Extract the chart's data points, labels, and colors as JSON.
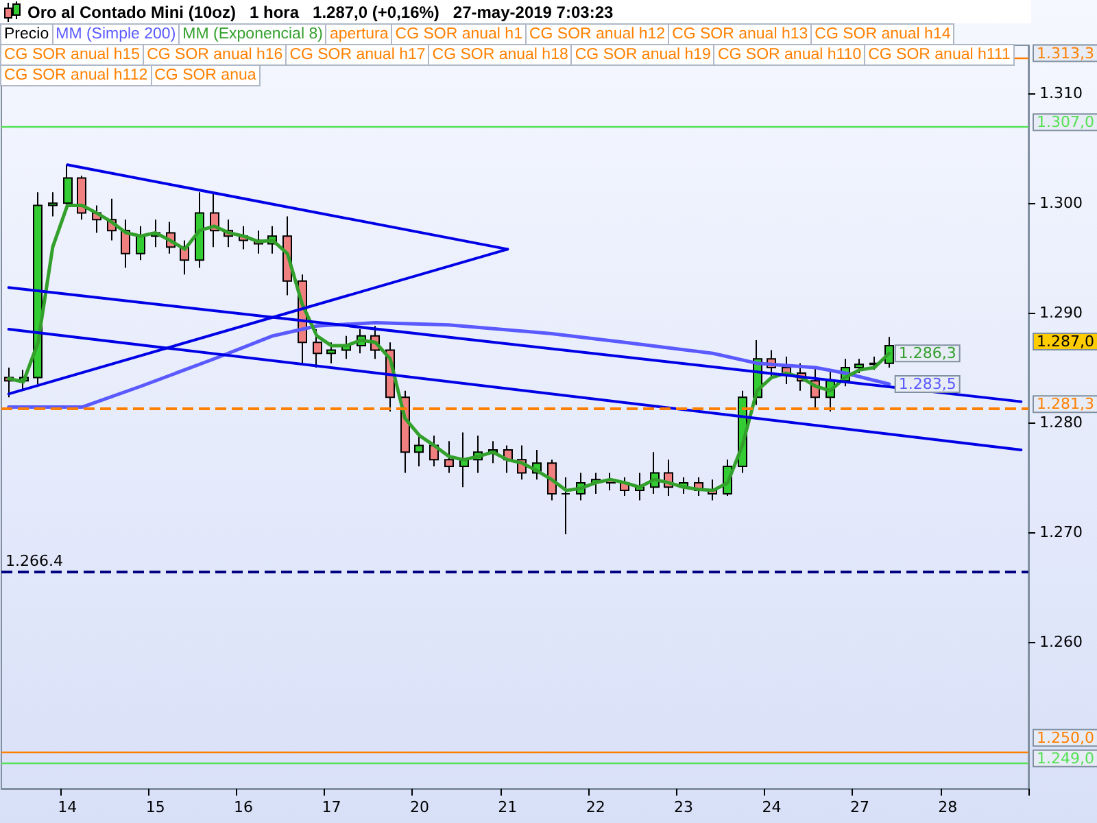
{
  "chart_data": {
    "type": "candlestick",
    "title": "Oro al Contado Mini (10oz)   1 hora   1.287,0 (+0,16%)   27-may-2019 7:03:23",
    "legend": "top",
    "annotations": [
      "apertura",
      "CG SOR anual h1",
      "CG SOR anual h12",
      "CG SOR anual h13",
      "CG SOR anual h14",
      "CG SOR anual h15",
      "CG SOR anual h16",
      "CG SOR anual h17",
      "CG SOR anual h18",
      "CG SOR anual h19",
      "CG SOR anual h110",
      "CG SOR anual h111",
      "CG SOR anual h112",
      "CG SOR anua",
      {
        "text": "1.266.4",
        "y": 1266.4
      }
    ],
    "categories": [
      null,
      null,
      null,
      null,
      "14",
      null,
      null,
      null,
      null,
      null,
      "15",
      null,
      null,
      null,
      null,
      null,
      "16",
      null,
      null,
      null,
      null,
      null,
      "17",
      null,
      null,
      null,
      null,
      null,
      "20",
      null,
      null,
      null,
      null,
      null,
      "21",
      null,
      null,
      null,
      null,
      null,
      "22",
      null,
      null,
      null,
      null,
      null,
      "23",
      null,
      null,
      null,
      null,
      null,
      "24",
      null,
      null,
      null,
      null,
      null,
      "27",
      null,
      null,
      null,
      null,
      null,
      "28",
      null,
      null,
      null,
      null,
      null
    ],
    "ylim": [
      1246.6,
      1314.4
    ],
    "yticks": [
      {
        "value": 1260,
        "label": "1.260"
      },
      {
        "value": 1270,
        "label": "1.270"
      },
      {
        "value": 1280,
        "label": "1.280"
      },
      {
        "value": 1290,
        "label": "1.290"
      },
      {
        "value": 1300,
        "label": "1.300"
      },
      {
        "value": 1310,
        "label": "1.310"
      }
    ],
    "ref_lines": [
      {
        "axis": "y",
        "value": 1313.3,
        "label": "1.313,3",
        "color": "#ff8000"
      },
      {
        "axis": "y",
        "value": 1307,
        "label": "1.307,0",
        "color": "#55e055"
      },
      {
        "axis": "y",
        "value": 1281.3,
        "label": "1.281,3",
        "color": "#ff8000",
        "line_style": "dashed"
      },
      {
        "axis": "y",
        "value": 1266.4,
        "color": "#000080",
        "line_style": "dashed"
      },
      {
        "axis": "y",
        "value": 1250,
        "label": "1.250,0",
        "color": "#ff8000"
      },
      {
        "axis": "y",
        "value": 1249,
        "label": "1.249,0",
        "color": "#55e055"
      }
    ],
    "series": [
      {
        "type": "candlestick",
        "name": "Precio",
        "ohlc": [
          [
            1284.1,
            1285,
            1282.3,
            1283.8
          ],
          [
            1283.8,
            1284.8,
            1282.9,
            1284.1
          ],
          [
            1284.1,
            1301,
            1283.5,
            1299.8
          ],
          [
            1299.8,
            1301,
            1298.8,
            1300
          ],
          [
            1300,
            1303.5,
            1299.8,
            1302.3
          ],
          [
            1302.3,
            1302.5,
            1298.5,
            1299.1
          ],
          [
            1299.1,
            1299.8,
            1297.3,
            1298.5
          ],
          [
            1298.5,
            1300.4,
            1296.6,
            1297.5
          ],
          [
            1297.5,
            1298.5,
            1294.1,
            1295.4
          ],
          [
            1295.4,
            1297.9,
            1294.8,
            1297
          ],
          [
            1297,
            1298.5,
            1296,
            1297.3
          ],
          [
            1297.3,
            1298.3,
            1295.4,
            1296
          ],
          [
            1296,
            1296.6,
            1293.5,
            1294.8
          ],
          [
            1294.8,
            1301,
            1294.1,
            1299.1
          ],
          [
            1299.1,
            1301,
            1296,
            1297.5
          ],
          [
            1297.5,
            1298.5,
            1296,
            1297
          ],
          [
            1297,
            1297.9,
            1295.8,
            1296.6
          ],
          [
            1296.6,
            1297.5,
            1295.4,
            1296.3
          ],
          [
            1296.3,
            1297.9,
            1295.4,
            1297
          ],
          [
            1297,
            1298.8,
            1291.6,
            1292.9
          ],
          [
            1292.9,
            1293.5,
            1285.4,
            1287.3
          ],
          [
            1287.3,
            1288.5,
            1285,
            1286.3
          ],
          [
            1286.3,
            1287.3,
            1285.4,
            1286.6
          ],
          [
            1286.6,
            1287.9,
            1285.8,
            1287
          ],
          [
            1287,
            1288.5,
            1286.3,
            1287.9
          ],
          [
            1287.9,
            1288.8,
            1285.8,
            1286.6
          ],
          [
            1286.6,
            1287.3,
            1281,
            1282.3
          ],
          [
            1282.3,
            1282.9,
            1275.4,
            1277.3
          ],
          [
            1277.3,
            1278.8,
            1276,
            1277.9
          ],
          [
            1277.9,
            1278.8,
            1276,
            1276.6
          ],
          [
            1276.6,
            1278.3,
            1275.4,
            1276
          ],
          [
            1276,
            1279.1,
            1274.1,
            1276.6
          ],
          [
            1276.6,
            1278.8,
            1275.4,
            1277.3
          ],
          [
            1277.3,
            1278.3,
            1276.3,
            1277.5
          ],
          [
            1277.5,
            1277.9,
            1275.4,
            1276.6
          ],
          [
            1276.6,
            1277.9,
            1274.8,
            1275.4
          ],
          [
            1275.4,
            1277.5,
            1274.8,
            1276.3
          ],
          [
            1276.3,
            1276.6,
            1272.9,
            1273.5
          ],
          [
            1273.5,
            1275,
            1269.8,
            1273.5
          ],
          [
            1273.5,
            1275.4,
            1272.9,
            1274.5
          ],
          [
            1274.5,
            1275.4,
            1273.5,
            1274.8
          ],
          [
            1274.8,
            1275.4,
            1273.8,
            1274.5
          ],
          [
            1274.5,
            1275,
            1273.3,
            1273.8
          ],
          [
            1273.8,
            1275.4,
            1272.9,
            1274.1
          ],
          [
            1274.1,
            1277.3,
            1273.5,
            1275.4
          ],
          [
            1275.4,
            1276.6,
            1273.3,
            1274.1
          ],
          [
            1274.1,
            1275,
            1273.5,
            1274.5
          ],
          [
            1274.5,
            1275,
            1273.3,
            1273.8
          ],
          [
            1273.8,
            1274.8,
            1272.9,
            1273.5
          ],
          [
            1273.5,
            1276.6,
            1273.3,
            1276
          ],
          [
            1276,
            1282.9,
            1275.4,
            1282.3
          ],
          [
            1282.3,
            1287.5,
            1281.6,
            1285.8
          ],
          [
            1285.8,
            1286.6,
            1284.1,
            1285
          ],
          [
            1285,
            1286,
            1283.5,
            1284.5
          ],
          [
            1284.5,
            1285.4,
            1282.9,
            1283.8
          ],
          [
            1283.8,
            1285,
            1281.3,
            1282.3
          ],
          [
            1282.3,
            1284.8,
            1281,
            1283.8
          ],
          [
            1283.8,
            1285.8,
            1283.3,
            1285
          ],
          [
            1285,
            1285.8,
            1284.5,
            1285.3
          ],
          [
            1285.3,
            1286,
            1284.8,
            1285.4
          ],
          [
            1285.4,
            1287.8,
            1285,
            1287
          ],
          null,
          null,
          null,
          null,
          null,
          null,
          null,
          null,
          null
        ],
        "value_labels": [
          null,
          null,
          null,
          null,
          null,
          null,
          null,
          null,
          null,
          null,
          null,
          null,
          null,
          null,
          null,
          null,
          null,
          null,
          null,
          null,
          null,
          null,
          null,
          null,
          null,
          null,
          null,
          null,
          null,
          null,
          null,
          null,
          null,
          null,
          null,
          null,
          null,
          null,
          null,
          null,
          null,
          null,
          null,
          null,
          null,
          null,
          null,
          null,
          null,
          null,
          null,
          null,
          null,
          null,
          null,
          null,
          null,
          null,
          null,
          null,
          "1.287,0",
          null,
          null,
          null,
          null,
          null,
          null,
          null,
          null,
          null
        ]
      },
      {
        "type": "line",
        "name": "MM (Simple 200)",
        "color": "#5a5aff",
        "values": [
          1281.4,
          null,
          null,
          null,
          null,
          1281.4,
          null,
          null,
          null,
          1283.3,
          null,
          null,
          null,
          null,
          1285.8,
          null,
          null,
          null,
          1287.9,
          null,
          null,
          1288.8,
          null,
          null,
          null,
          1289.1,
          null,
          null,
          null,
          null,
          1288.9,
          null,
          null,
          null,
          null,
          null,
          null,
          1288.1,
          null,
          null,
          null,
          null,
          1287.3,
          null,
          null,
          null,
          null,
          null,
          1286.3,
          null,
          null,
          1285.4,
          null,
          null,
          null,
          1285,
          null,
          1284.5,
          null,
          null,
          1283.5,
          null,
          null,
          null,
          null,
          null,
          null,
          null,
          null,
          null
        ],
        "value_labels": [
          null,
          null,
          null,
          null,
          null,
          null,
          null,
          null,
          null,
          null,
          null,
          null,
          null,
          null,
          null,
          null,
          null,
          null,
          null,
          null,
          null,
          null,
          null,
          null,
          null,
          null,
          null,
          null,
          null,
          null,
          null,
          null,
          null,
          null,
          null,
          null,
          null,
          null,
          null,
          null,
          null,
          null,
          null,
          null,
          null,
          null,
          null,
          null,
          null,
          null,
          null,
          null,
          null,
          null,
          null,
          null,
          null,
          null,
          null,
          null,
          "1.283,5",
          null,
          null,
          null,
          null,
          null,
          null,
          null,
          null,
          null
        ]
      },
      {
        "type": "line",
        "name": "MM (Exponencial 8)",
        "color": "#33a02c",
        "values": [
          1284,
          1283.7,
          1287.3,
          1296,
          1299.8,
          1299.8,
          1299.1,
          1298.3,
          1297.3,
          1297,
          1297.3,
          1296.6,
          1295.8,
          1297.5,
          1297.9,
          1297.3,
          1297,
          1296.5,
          1296.6,
          1295.4,
          1290.8,
          1287.9,
          1287,
          1287,
          1287.5,
          1287.3,
          1285.8,
          1280.4,
          1278.8,
          1277.9,
          1276.9,
          1276.6,
          1276.9,
          1277.3,
          1276.6,
          1276.3,
          1275.6,
          1274.8,
          1273.8,
          1274,
          1274.5,
          1274.8,
          1274.5,
          1274.1,
          1274.8,
          1274.5,
          1274.1,
          1273.9,
          1273.8,
          1274.5,
          1277.9,
          1282.9,
          1284.1,
          1284.5,
          1284.1,
          1283.3,
          1282.9,
          1284.1,
          1284.8,
          1285,
          1286.3,
          null,
          null,
          null,
          null,
          null,
          null,
          null,
          null,
          null
        ],
        "value_labels": [
          null,
          null,
          null,
          null,
          null,
          null,
          null,
          null,
          null,
          null,
          null,
          null,
          null,
          null,
          null,
          null,
          null,
          null,
          null,
          null,
          null,
          null,
          null,
          null,
          null,
          null,
          null,
          null,
          null,
          null,
          null,
          null,
          null,
          null,
          null,
          null,
          null,
          null,
          null,
          null,
          null,
          null,
          null,
          null,
          null,
          null,
          null,
          null,
          null,
          null,
          null,
          null,
          null,
          null,
          null,
          null,
          null,
          null,
          null,
          null,
          "1.286,3",
          null,
          null,
          null,
          null,
          null,
          null,
          null,
          null,
          null
        ]
      },
      {
        "type": "line",
        "color": "#0000e6",
        "values": [
          null,
          null,
          null,
          null,
          1303.5,
          null,
          null,
          null,
          null,
          null,
          null,
          null,
          null,
          null,
          null,
          null,
          null,
          null,
          null,
          null,
          null,
          null,
          null,
          null,
          null,
          null,
          null,
          null,
          null,
          null,
          null,
          null,
          null,
          null,
          1295.8,
          null,
          null,
          null,
          null,
          null,
          null,
          null,
          null,
          null,
          null,
          null,
          null,
          null,
          null,
          null,
          null,
          null,
          null,
          null,
          null,
          null,
          null,
          null,
          null,
          null,
          null,
          null,
          null,
          null,
          null,
          null,
          null,
          null,
          null,
          null
        ]
      },
      {
        "type": "line",
        "color": "#0000e6",
        "values": [
          1282.6,
          null,
          null,
          null,
          null,
          null,
          null,
          null,
          null,
          null,
          null,
          null,
          null,
          null,
          null,
          null,
          null,
          null,
          null,
          null,
          null,
          null,
          null,
          null,
          null,
          null,
          null,
          null,
          null,
          null,
          null,
          null,
          null,
          null,
          1295.8,
          null,
          null,
          null,
          null,
          null,
          null,
          null,
          null,
          null,
          null,
          null,
          null,
          null,
          null,
          null,
          null,
          null,
          null,
          null,
          null,
          null,
          null,
          null,
          null,
          null,
          null,
          null,
          null,
          null,
          null,
          null,
          null,
          null,
          null,
          null
        ]
      },
      {
        "type": "line",
        "color": "#0000e6",
        "values": [
          1292.3,
          null,
          null,
          null,
          null,
          null,
          null,
          null,
          null,
          null,
          null,
          null,
          null,
          null,
          null,
          null,
          null,
          null,
          null,
          null,
          null,
          null,
          null,
          null,
          null,
          null,
          null,
          null,
          null,
          null,
          null,
          null,
          null,
          null,
          null,
          null,
          null,
          null,
          null,
          null,
          null,
          null,
          null,
          null,
          null,
          null,
          null,
          null,
          null,
          null,
          null,
          null,
          null,
          null,
          null,
          null,
          null,
          null,
          null,
          null,
          null,
          null,
          null,
          null,
          null,
          null,
          null,
          null,
          null,
          1281.9
        ]
      },
      {
        "type": "line",
        "color": "#0000e6",
        "values": [
          1288.5,
          null,
          null,
          null,
          null,
          null,
          null,
          null,
          null,
          null,
          null,
          null,
          null,
          null,
          null,
          null,
          null,
          null,
          null,
          null,
          null,
          null,
          null,
          null,
          null,
          null,
          null,
          null,
          null,
          null,
          null,
          null,
          null,
          null,
          null,
          null,
          null,
          null,
          null,
          null,
          null,
          null,
          null,
          null,
          null,
          null,
          null,
          null,
          null,
          null,
          null,
          null,
          null,
          null,
          null,
          null,
          null,
          null,
          null,
          null,
          null,
          null,
          null,
          null,
          null,
          null,
          null,
          null,
          null,
          1277.5
        ]
      }
    ]
  }
}
